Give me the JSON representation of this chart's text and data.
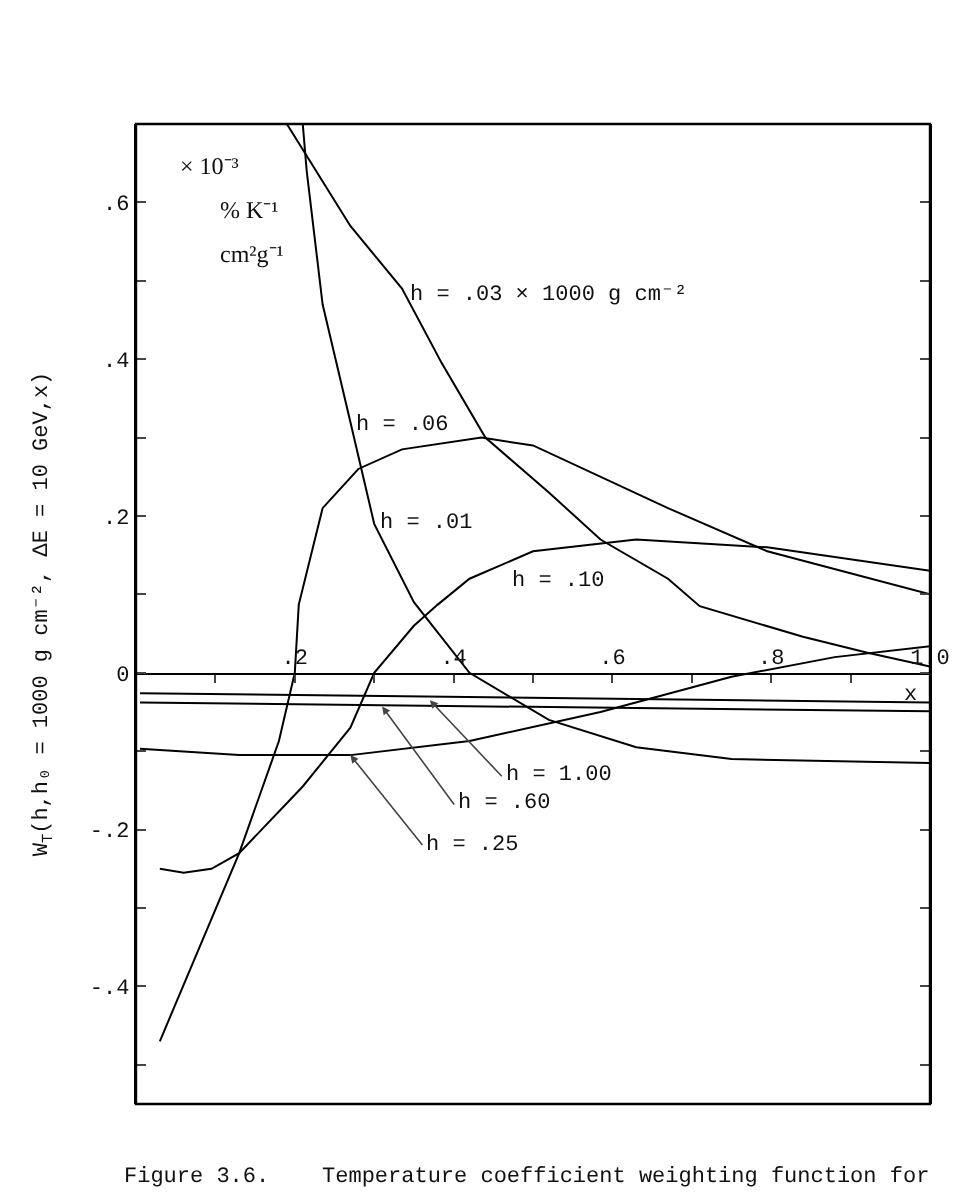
{
  "chart_data": {
    "type": "line",
    "ylabel": "W$_{T}$(h,h₀ = 1000 g cm⁻², ΔE = 10 GeV,x)",
    "xlabel": "x",
    "xlim": [
      0,
      1.0
    ],
    "ylim": [
      -0.55,
      0.7
    ],
    "xticks": [
      {
        "value": 0.1,
        "label": null
      },
      {
        "value": 0.2,
        "label": ".2"
      },
      {
        "value": 0.3,
        "label": null
      },
      {
        "value": 0.4,
        "label": ".4"
      },
      {
        "value": 0.5,
        "label": null
      },
      {
        "value": 0.6,
        "label": ".6"
      },
      {
        "value": 0.7,
        "label": null
      },
      {
        "value": 0.8,
        "label": ".8"
      },
      {
        "value": 0.9,
        "label": null
      },
      {
        "value": 1.0,
        "label": "1.0"
      }
    ],
    "yticks": [
      {
        "value": -0.5,
        "label": null
      },
      {
        "value": -0.4,
        "label": "-.4"
      },
      {
        "value": -0.3,
        "label": null
      },
      {
        "value": -0.2,
        "label": "-.2"
      },
      {
        "value": -0.1,
        "label": null
      },
      0,
      {
        "value": 0.1,
        "label": null
      },
      {
        "value": 0.2,
        "label": ".2"
      },
      {
        "value": 0.3,
        "label": null
      },
      {
        "value": 0.4,
        "label": ".4"
      },
      {
        "value": 0.5,
        "label": null
      },
      {
        "value": 0.6,
        "label": ".6"
      }
    ],
    "series": [
      {
        "color": "#000000",
        "x": [
          0.19,
          0.27,
          0.335,
          0.385,
          0.44,
          0.52,
          0.585,
          0.67,
          0.71,
          0.84,
          0.92,
          1.0
        ],
        "values": [
          0.7,
          0.57,
          0.49,
          0.395,
          0.3,
          0.23,
          0.17,
          0.12,
          0.085,
          0.046,
          0.026,
          0.008
        ]
      },
      {
        "color": "#000000",
        "x": [
          0.21,
          0.215,
          0.235,
          0.27,
          0.3,
          0.35,
          0.42,
          0.52,
          0.63,
          0.75,
          1.0
        ],
        "values": [
          0.7,
          0.64,
          0.47,
          0.32,
          0.19,
          0.09,
          0.0,
          -0.06,
          -0.095,
          -0.11,
          -0.115
        ]
      },
      {
        "color": "#000000",
        "x": [
          0.03,
          0.13,
          0.18,
          0.2,
          0.205,
          0.235,
          0.28,
          0.335,
          0.435,
          0.5,
          0.67,
          0.795,
          1.0
        ],
        "values": [
          -0.47,
          -0.23,
          -0.087,
          0.0,
          0.087,
          0.21,
          0.26,
          0.285,
          0.3,
          0.29,
          0.21,
          0.155,
          0.1
        ]
      },
      {
        "color": "#000000",
        "x": [
          0.03,
          0.06,
          0.095,
          0.13,
          0.21,
          0.27,
          0.3,
          0.35,
          0.38,
          0.42,
          0.5,
          0.63,
          0.795,
          1.0
        ],
        "values": [
          -0.25,
          -0.255,
          -0.25,
          -0.23,
          -0.145,
          -0.07,
          0.0,
          0.06,
          0.087,
          0.12,
          0.155,
          0.17,
          0.16,
          0.13
        ]
      },
      {
        "color": "#000000",
        "x": [
          0.005,
          0.13,
          0.27,
          0.42,
          0.585,
          0.75,
          0.88,
          1.0
        ],
        "values": [
          -0.097,
          -0.105,
          -0.105,
          -0.087,
          -0.05,
          -0.005,
          0.02,
          0.034
        ]
      },
      {
        "color": "#000000",
        "x": [
          0.005,
          1.0
        ],
        "values": [
          -0.038,
          -0.049
        ]
      },
      {
        "color": "#000000",
        "x": [
          0.005,
          1.0
        ],
        "values": [
          -0.026,
          -0.038
        ]
      }
    ],
    "annotations": [
      "× 10⁻³",
      "% K⁻¹",
      "cm²g⁻¹",
      {
        "text": "h = .03 × 1000 g cm⁻²",
        "x": 0.34,
        "y": 0.5
      },
      {
        "text": "h = .06",
        "x": 0.273,
        "y": 0.335
      },
      {
        "text": "h = .01",
        "x": 0.303,
        "y": 0.21
      },
      {
        "text": "h = .10",
        "x": 0.469,
        "y": 0.137
      },
      {
        "text": "h = 1.00",
        "x": 0.37,
        "y": -0.035
      },
      {
        "text": "h = .60",
        "x": 0.31,
        "y": -0.043
      },
      {
        "text": "h = .25",
        "x": 0.27,
        "y": -0.105
      },
      "Figure 3.6.    Temperature coefficient weighting function for"
    ]
  }
}
